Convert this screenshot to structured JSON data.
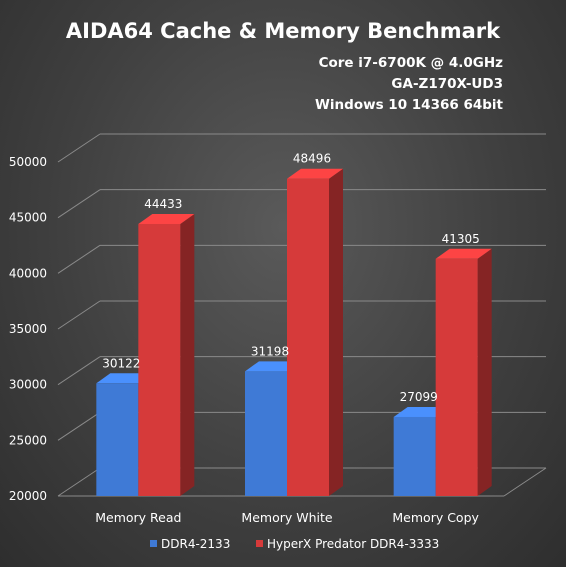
{
  "chart_data": {
    "type": "bar",
    "title": "AIDA64 Cache & Memory Benchmark",
    "subtitle": [
      "Core i7-6700K @ 4.0GHz",
      "GA-Z170X-UD3",
      "Windows 10 14366 64bit"
    ],
    "categories": [
      "Memory Read",
      "Memory White",
      "Memory Copy"
    ],
    "series": [
      {
        "name": "DDR4-2133",
        "values": [
          30122,
          31198,
          27099
        ],
        "color": "#3f7ad6"
      },
      {
        "name": "HyperX Predator DDR4-3333",
        "values": [
          44433,
          48496,
          41305
        ],
        "color": "#d63a3a"
      }
    ],
    "ylim": [
      20000,
      50000
    ],
    "yticks": [
      "20000",
      "25000",
      "30000",
      "35000",
      "40000",
      "45000",
      "50000"
    ],
    "grid": true,
    "legend": "bottom",
    "style": "3d-column"
  }
}
